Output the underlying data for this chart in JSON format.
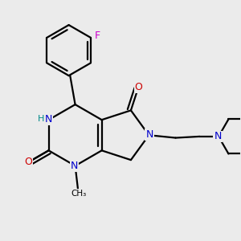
{
  "background_color": "#ebebeb",
  "atom_colors": {
    "C": "#000000",
    "N": "#0000cc",
    "O": "#cc0000",
    "F": "#cc00cc",
    "H": "#008888"
  },
  "figsize": [
    3.0,
    3.0
  ],
  "dpi": 100
}
